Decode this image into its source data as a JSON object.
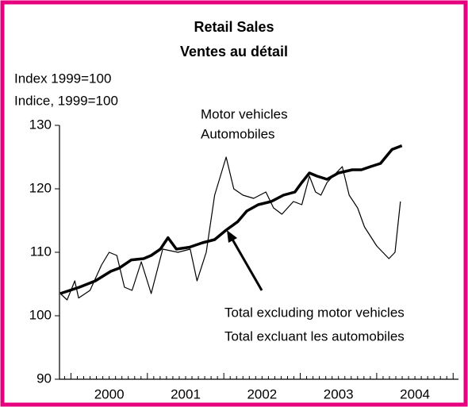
{
  "chart_data": {
    "type": "line",
    "title": "Retail Sales",
    "subtitle": "Ventes au détail",
    "y_axis_label": [
      "Index 1999=100",
      "Indice, 1999=100"
    ],
    "annotations": [
      {
        "text": [
          "Motor vehicles",
          "Automobiles"
        ]
      },
      {
        "text": [
          "Total excluding motor vehicles",
          "Total excluant les automobiles"
        ]
      }
    ],
    "series": [
      {
        "name": "Total excluding motor vehicles",
        "color": "#000000",
        "width": 3.5,
        "x": [
          1999.86,
          2000.11,
          2000.32,
          2000.52,
          2000.63,
          2000.79,
          2000.95,
          2001.05,
          2001.17,
          2001.27,
          2001.38,
          2001.55,
          2001.72,
          2001.88,
          2002.03,
          2002.18,
          2002.3,
          2002.45,
          2002.62,
          2002.78,
          2002.93,
          2003.02,
          2003.12,
          2003.22,
          2003.35,
          2003.5,
          2003.68,
          2003.8,
          2003.92,
          2004.05,
          2004.2,
          2004.33
        ],
        "values": [
          103.5,
          104.5,
          105.5,
          107,
          107.5,
          108.8,
          109,
          109.5,
          110.5,
          112.3,
          110.5,
          110.8,
          111.5,
          112,
          113.5,
          114.8,
          116.5,
          117.5,
          118,
          119,
          119.5,
          121,
          122.5,
          122,
          121.5,
          122.5,
          123,
          123,
          123.5,
          124,
          126.2,
          126.8
        ]
      },
      {
        "name": "Motor vehicles",
        "color": "#000000",
        "width": 1.2,
        "x": [
          1999.86,
          1999.95,
          2000.05,
          2000.1,
          2000.25,
          2000.4,
          2000.5,
          2000.6,
          2000.7,
          2000.8,
          2000.92,
          2001.05,
          2001.2,
          2001.4,
          2001.56,
          2001.65,
          2001.77,
          2001.88,
          2002.03,
          2002.13,
          2002.25,
          2002.39,
          2002.55,
          2002.65,
          2002.76,
          2002.91,
          2003.02,
          2003.12,
          2003.2,
          2003.27,
          2003.35,
          2003.43,
          2003.55,
          2003.64,
          2003.75,
          2003.84,
          2004.0,
          2004.16,
          2004.24,
          2004.31
        ],
        "values": [
          103.5,
          102.5,
          105.5,
          102.8,
          104,
          108,
          110,
          109.5,
          104.5,
          104,
          108.5,
          103.5,
          110.5,
          110,
          110.5,
          105.5,
          110,
          119,
          125,
          120,
          119,
          118.5,
          119.5,
          117,
          116,
          118,
          117.5,
          122,
          119.5,
          119,
          121,
          122,
          123.5,
          119,
          117,
          114,
          111,
          109,
          110,
          118
        ]
      }
    ],
    "xlim": [
      1999.85,
      2005.07
    ],
    "xticks": [
      {
        "value": 2000.5,
        "label": "2000"
      },
      {
        "value": 2001.5,
        "label": "2001"
      },
      {
        "value": 2002.5,
        "label": "2002"
      },
      {
        "value": 2003.5,
        "label": "2003"
      },
      {
        "value": 2004.5,
        "label": "2004"
      }
    ],
    "ylim": [
      90,
      130
    ],
    "yticks": [
      90,
      100,
      110,
      120,
      130
    ],
    "grid": false,
    "border_color": "#e6007e"
  }
}
